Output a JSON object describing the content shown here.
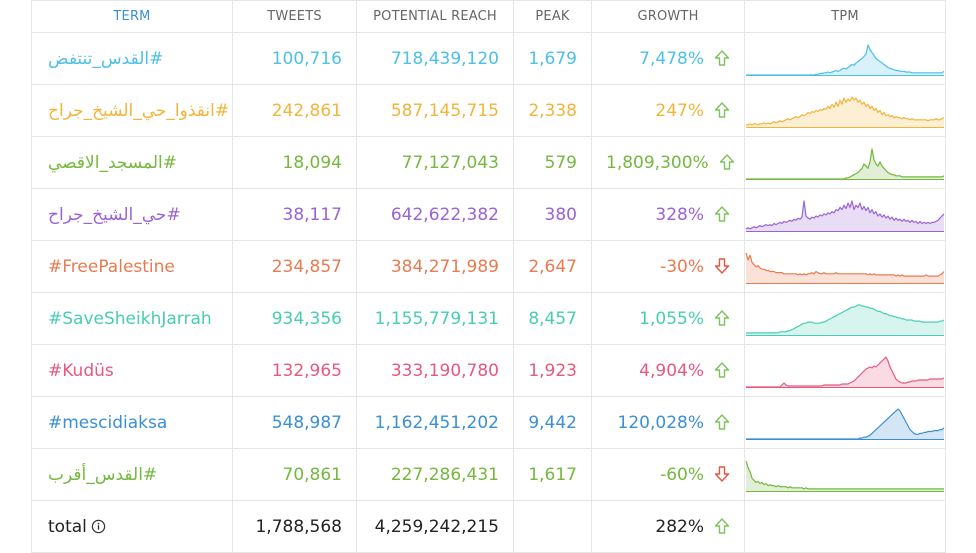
{
  "headers": {
    "term": "TERM",
    "tweets": "TWEETS",
    "reach": "POTENTIAL REACH",
    "peak": "PEAK",
    "growth": "GROWTH",
    "tpm": "TPM"
  },
  "colors": {
    "up": "#7cc35a",
    "down": "#e8553e"
  },
  "rows": [
    {
      "term": "القدس_تنتفض#",
      "tweets": "100,716",
      "reach": "718,439,120",
      "peak": "1,679",
      "growth": "7,478%",
      "direction": "up",
      "color": "#4dc0e8",
      "tpm": [
        0,
        0,
        0,
        0,
        0,
        0,
        0,
        0,
        0,
        0,
        0,
        0,
        0,
        0,
        0,
        0,
        0,
        0,
        0,
        0,
        0,
        0,
        0,
        0,
        0,
        0,
        0,
        0,
        0,
        0,
        0,
        0,
        0,
        0,
        0,
        1,
        1,
        2,
        2,
        3,
        3,
        4,
        3,
        4,
        5,
        6,
        5,
        6,
        8,
        9,
        8,
        10,
        12,
        14,
        13,
        16,
        18,
        20,
        22,
        25,
        28,
        40,
        34,
        30,
        26,
        22,
        20,
        18,
        16,
        14,
        12,
        10,
        9,
        8,
        7,
        6,
        6,
        5,
        5,
        5,
        4,
        4,
        4,
        3,
        3,
        3,
        3,
        3,
        3,
        3,
        3,
        3,
        3,
        3,
        3,
        3,
        3,
        3,
        3,
        5
      ]
    },
    {
      "term": "انقذوا_حي_الشيخ_جراح#",
      "tweets": "242,861",
      "reach": "587,145,715",
      "peak": "2,338",
      "growth": "247%",
      "direction": "up",
      "color": "#f2b43a",
      "tpm": [
        2,
        2,
        3,
        2,
        3,
        3,
        2,
        3,
        3,
        4,
        3,
        4,
        3,
        4,
        5,
        4,
        5,
        6,
        5,
        6,
        7,
        8,
        7,
        8,
        9,
        10,
        9,
        10,
        12,
        11,
        12,
        14,
        13,
        15,
        14,
        16,
        15,
        17,
        16,
        18,
        17,
        20,
        18,
        22,
        19,
        24,
        20,
        26,
        22,
        28,
        24,
        27,
        25,
        29,
        26,
        28,
        24,
        26,
        22,
        24,
        20,
        22,
        18,
        20,
        16,
        18,
        14,
        16,
        12,
        14,
        11,
        12,
        10,
        11,
        9,
        10,
        9,
        9,
        8,
        9,
        8,
        8,
        7,
        8,
        7,
        7,
        7,
        7,
        7,
        7,
        7,
        6,
        7,
        7,
        7,
        8,
        7,
        7,
        8,
        9
      ]
    },
    {
      "term": "المسجد_الاقصي#",
      "tweets": "18,094",
      "reach": "77,127,043",
      "peak": "579",
      "growth": "1,809,300%",
      "direction": "up",
      "color": "#74b83e",
      "tpm": [
        0,
        0,
        0,
        0,
        0,
        0,
        0,
        0,
        0,
        0,
        0,
        0,
        0,
        0,
        0,
        0,
        0,
        0,
        0,
        0,
        0,
        0,
        0,
        0,
        0,
        0,
        0,
        0,
        0,
        0,
        0,
        0,
        0,
        0,
        0,
        0,
        0,
        0,
        0,
        0,
        0,
        0,
        0,
        0,
        0,
        0,
        0,
        0,
        0,
        0,
        1,
        1,
        2,
        3,
        4,
        5,
        6,
        8,
        10,
        14,
        12,
        10,
        16,
        28,
        18,
        14,
        12,
        16,
        12,
        10,
        8,
        6,
        5,
        4,
        4,
        3,
        3,
        3,
        2,
        2,
        2,
        2,
        2,
        2,
        2,
        2,
        2,
        2,
        2,
        2,
        2,
        2,
        2,
        2,
        2,
        2,
        2,
        2,
        2,
        3
      ]
    },
    {
      "term": "حي_الشيخ_جراح#",
      "tweets": "38,117",
      "reach": "642,622,382",
      "peak": "380",
      "growth": "328%",
      "direction": "up",
      "color": "#9a63d4",
      "tpm": [
        2,
        3,
        2,
        3,
        4,
        3,
        4,
        5,
        4,
        5,
        6,
        5,
        6,
        5,
        7,
        6,
        7,
        8,
        7,
        9,
        8,
        9,
        10,
        9,
        11,
        10,
        12,
        11,
        13,
        28,
        14,
        12,
        11,
        13,
        12,
        14,
        13,
        15,
        14,
        16,
        15,
        17,
        16,
        18,
        17,
        20,
        19,
        22,
        20,
        24,
        21,
        26,
        22,
        28,
        20,
        24,
        22,
        26,
        20,
        23,
        19,
        22,
        17,
        20,
        16,
        18,
        14,
        16,
        13,
        15,
        12,
        14,
        11,
        13,
        10,
        12,
        10,
        11,
        9,
        11,
        9,
        10,
        8,
        10,
        8,
        9,
        7,
        9,
        7,
        8,
        7,
        8,
        7,
        8,
        8,
        9,
        10,
        12,
        14,
        16
      ]
    },
    {
      "term": "#FreePalestine",
      "tweets": "234,857",
      "reach": "384,271,989",
      "peak": "2,647",
      "growth": "-30%",
      "direction": "down",
      "color": "#ea7a50",
      "tpm": [
        26,
        20,
        24,
        18,
        16,
        14,
        15,
        13,
        12,
        12,
        11,
        11,
        10,
        10,
        10,
        9,
        9,
        9,
        9,
        8,
        8,
        8,
        8,
        8,
        8,
        8,
        7,
        8,
        7,
        8,
        7,
        8,
        8,
        9,
        8,
        10,
        9,
        8,
        8,
        9,
        8,
        8,
        8,
        8,
        8,
        9,
        8,
        8,
        8,
        8,
        8,
        8,
        8,
        8,
        8,
        8,
        8,
        8,
        8,
        8,
        8,
        7,
        8,
        7,
        8,
        7,
        7,
        7,
        7,
        7,
        7,
        7,
        7,
        7,
        7,
        6,
        7,
        6,
        7,
        6,
        6,
        6,
        6,
        6,
        6,
        6,
        6,
        6,
        6,
        6,
        7,
        6,
        6,
        6,
        6,
        6,
        6,
        7,
        8,
        10
      ]
    },
    {
      "term": "#SaveSheikhJarrah",
      "tweets": "934,356",
      "reach": "1,155,779,131",
      "peak": "8,457",
      "growth": "1,055%",
      "direction": "up",
      "color": "#48cdb5",
      "tpm": [
        2,
        2,
        2,
        2,
        2,
        2,
        2,
        2,
        2,
        2,
        2,
        2,
        2,
        2,
        2,
        2,
        2,
        3,
        3,
        3,
        3,
        4,
        4,
        5,
        6,
        7,
        8,
        9,
        10,
        11,
        11,
        12,
        12,
        12,
        11,
        11,
        11,
        11,
        12,
        12,
        13,
        14,
        15,
        16,
        17,
        18,
        19,
        20,
        21,
        22,
        23,
        24,
        25,
        26,
        26,
        27,
        28,
        28,
        27,
        27,
        26,
        26,
        25,
        25,
        24,
        23,
        22,
        22,
        21,
        20,
        20,
        19,
        18,
        18,
        17,
        17,
        16,
        16,
        15,
        15,
        14,
        14,
        14,
        14,
        13,
        13,
        13,
        13,
        12,
        12,
        12,
        12,
        12,
        12,
        12,
        12,
        12,
        13,
        13,
        14
      ]
    },
    {
      "term": "#Kudüs",
      "tweets": "132,965",
      "reach": "333,190,780",
      "peak": "1,923",
      "growth": "4,904%",
      "direction": "up",
      "color": "#e8587e",
      "tpm": [
        0,
        0,
        0,
        0,
        0,
        0,
        0,
        0,
        0,
        0,
        0,
        0,
        0,
        0,
        0,
        0,
        0,
        0,
        2,
        4,
        2,
        1,
        1,
        1,
        1,
        1,
        1,
        1,
        1,
        1,
        1,
        1,
        1,
        1,
        1,
        1,
        1,
        1,
        1,
        2,
        2,
        2,
        2,
        2,
        2,
        2,
        2,
        2,
        3,
        3,
        3,
        3,
        4,
        5,
        6,
        8,
        10,
        12,
        14,
        16,
        18,
        19,
        20,
        19,
        21,
        20,
        22,
        24,
        26,
        28,
        30,
        26,
        20,
        16,
        12,
        8,
        6,
        5,
        4,
        4,
        4,
        5,
        5,
        6,
        6,
        6,
        7,
        7,
        7,
        7,
        7,
        7,
        8,
        8,
        8,
        8,
        8,
        8,
        8,
        9
      ]
    },
    {
      "term": "#mescidiaksa",
      "tweets": "548,987",
      "reach": "1,162,451,202",
      "peak": "9,442",
      "growth": "120,028%",
      "direction": "up",
      "color": "#3a8fd6",
      "tpm": [
        0,
        0,
        0,
        0,
        0,
        0,
        0,
        0,
        0,
        0,
        0,
        0,
        0,
        0,
        0,
        0,
        0,
        0,
        0,
        0,
        0,
        0,
        0,
        0,
        0,
        0,
        0,
        0,
        0,
        0,
        0,
        0,
        0,
        0,
        0,
        0,
        0,
        0,
        0,
        0,
        0,
        0,
        0,
        0,
        0,
        0,
        0,
        0,
        0,
        0,
        0,
        0,
        0,
        0,
        0,
        0,
        0,
        1,
        1,
        2,
        2,
        3,
        4,
        6,
        8,
        10,
        12,
        14,
        16,
        18,
        20,
        22,
        24,
        26,
        28,
        30,
        32,
        30,
        26,
        22,
        18,
        14,
        10,
        8,
        6,
        5,
        5,
        6,
        6,
        7,
        7,
        8,
        8,
        8,
        9,
        9,
        9,
        10,
        10,
        12
      ]
    },
    {
      "term": "القدس_أقرب#",
      "tweets": "70,861",
      "reach": "227,286,431",
      "peak": "1,617",
      "growth": "-60%",
      "direction": "down",
      "color": "#74b83e",
      "tpm": [
        28,
        22,
        18,
        12,
        10,
        8,
        9,
        7,
        8,
        6,
        7,
        5,
        6,
        5,
        5,
        4,
        5,
        4,
        4,
        4,
        4,
        3,
        4,
        3,
        3,
        3,
        3,
        3,
        3,
        2,
        3,
        2,
        2,
        2,
        2,
        2,
        2,
        2,
        2,
        2,
        2,
        2,
        2,
        2,
        2,
        2,
        2,
        2,
        2,
        2,
        2,
        2,
        2,
        2,
        2,
        2,
        2,
        2,
        2,
        2,
        2,
        2,
        2,
        2,
        2,
        2,
        2,
        2,
        2,
        2,
        2,
        2,
        2,
        2,
        2,
        2,
        2,
        2,
        2,
        2,
        2,
        2,
        2,
        2,
        2,
        2,
        2,
        2,
        2,
        2,
        2,
        2,
        2,
        2,
        2,
        2,
        2,
        2,
        2,
        2
      ]
    }
  ],
  "total": {
    "label": "total",
    "tweets": "1,788,568",
    "reach": "4,259,242,215",
    "peak": "",
    "growth": "282%",
    "direction": "up"
  },
  "chart_data": {
    "type": "table",
    "columns": [
      "TERM",
      "TWEETS",
      "POTENTIAL REACH",
      "PEAK",
      "GROWTH",
      "TPM"
    ],
    "rows": [
      [
        "القدس_تنتفض#",
        100716,
        718439120,
        1679,
        "7,478%"
      ],
      [
        "انقذوا_حي_الشيخ_جراح#",
        242861,
        587145715,
        2338,
        "247%"
      ],
      [
        "المسجد_الاقصي#",
        18094,
        77127043,
        579,
        "1,809,300%"
      ],
      [
        "حي_الشيخ_جراح#",
        38117,
        642622382,
        380,
        "328%"
      ],
      [
        "#FreePalestine",
        234857,
        384271989,
        2647,
        "-30%"
      ],
      [
        "#SaveSheikhJarrah",
        934356,
        1155779131,
        8457,
        "1,055%"
      ],
      [
        "#Kudüs",
        132965,
        333190780,
        1923,
        "4,904%"
      ],
      [
        "#mescidiaksa",
        548987,
        1162451202,
        9442,
        "120,028%"
      ],
      [
        "القدس_أقرب#",
        70861,
        227286431,
        1617,
        "-60%"
      ]
    ],
    "total": [
      "total",
      1788568,
      4259242215,
      "",
      "282%"
    ]
  }
}
